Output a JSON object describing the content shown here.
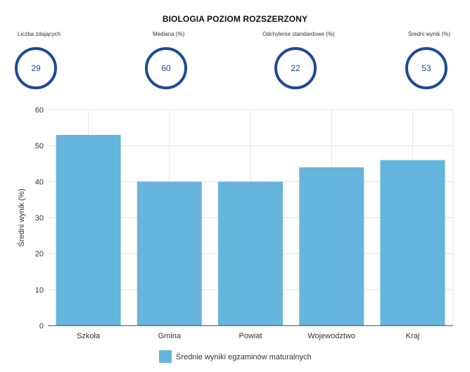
{
  "header": {
    "title": "BIOLOGIA POZIOM ROZSZERZONY"
  },
  "stats": [
    {
      "label": "Liczba zdających",
      "value": "29"
    },
    {
      "label": "Mediana (%)",
      "value": "60"
    },
    {
      "label": "Odchylenie standardowe (%)",
      "value": "22"
    },
    {
      "label": "Średni wynik (%)",
      "value": "53"
    }
  ],
  "colors": {
    "bar": "#66b5dc",
    "ring": "#1e4a96",
    "grid": "#e3e3e3"
  },
  "chart_data": {
    "type": "bar",
    "categories": [
      "Szkoła",
      "Gmina",
      "Powiat",
      "Wojewodztwo",
      "Kraj"
    ],
    "series": [
      {
        "name": "Średnie wyniki egzaminów maturalnych",
        "values": [
          53,
          40,
          40,
          44,
          46
        ]
      }
    ],
    "xlabel": "",
    "ylabel": "Średni wynik (%)",
    "ylim": [
      0,
      60
    ],
    "yticks": [
      0,
      10,
      20,
      30,
      40,
      50,
      60
    ],
    "grid": true,
    "legend": "bottom"
  }
}
